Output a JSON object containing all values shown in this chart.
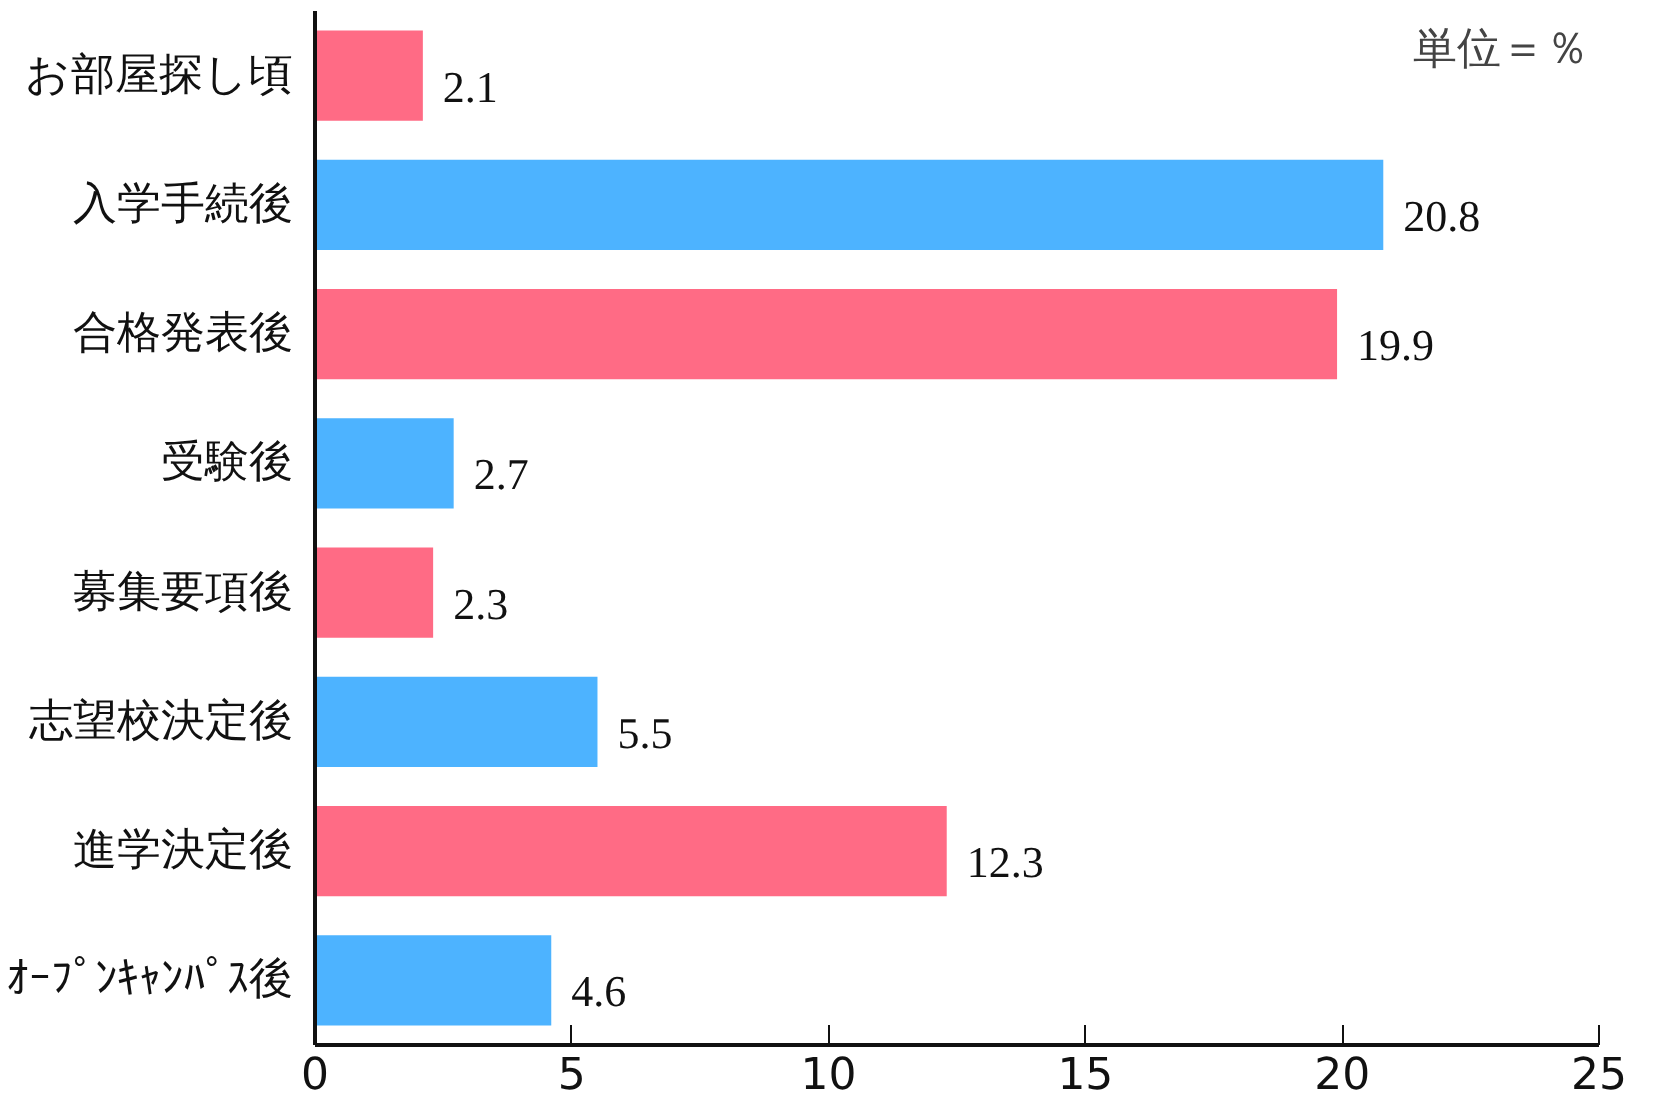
{
  "chart_data": {
    "type": "bar",
    "orientation": "horizontal",
    "categories": [
      "お部屋探し頃",
      "入学手続後",
      "合格発表後",
      "受験後",
      "募集要項後",
      "志望校決定後",
      "進学決定後",
      "ｵｰﾌﾟﾝｷｬﾝﾊﾟｽ後"
    ],
    "values": [
      2.1,
      20.8,
      19.9,
      2.7,
      2.3,
      5.5,
      12.3,
      4.6
    ],
    "colors": [
      "#ff6b85",
      "#4db3ff",
      "#ff6b85",
      "#4db3ff",
      "#ff6b85",
      "#4db3ff",
      "#ff6b85",
      "#4db3ff"
    ],
    "xlim": [
      0,
      25
    ],
    "xticks": [
      0,
      5,
      10,
      15,
      20,
      25
    ],
    "data_labels": true,
    "annotations": [
      "単位＝％"
    ]
  }
}
